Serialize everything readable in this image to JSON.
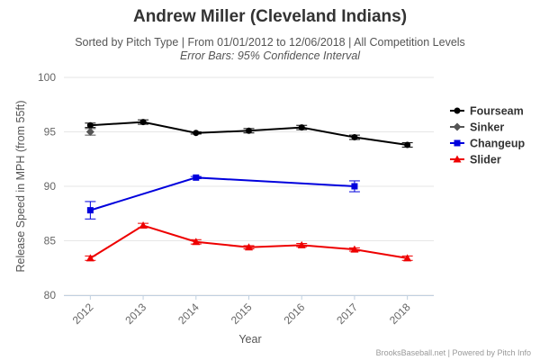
{
  "chart_data": {
    "type": "line",
    "title": "Andrew Miller (Cleveland Indians)",
    "subtitle": "Sorted by Pitch Type | From 01/01/2012 to 12/06/2018 | All Competition Levels",
    "subtitle2": "Error Bars: 95% Confidence Interval",
    "xlabel": "Year",
    "ylabel": "Release Speed in MPH (from 55ft)",
    "categories": [
      "2012",
      "2013",
      "2014",
      "2015",
      "2016",
      "2017",
      "2018"
    ],
    "ylim": [
      80,
      100
    ],
    "yticks": [
      "80",
      "85",
      "90",
      "95",
      "100"
    ],
    "grid": true,
    "legend_position": "right",
    "series": [
      {
        "name": "Fourseam",
        "color": "#000000",
        "marker": "circle",
        "values": [
          95.6,
          95.9,
          94.9,
          95.1,
          95.4,
          94.5,
          93.8
        ],
        "error": [
          0.2,
          0.2,
          0.1,
          0.2,
          0.2,
          0.2,
          0.2
        ]
      },
      {
        "name": "Sinker",
        "color": "#555555",
        "marker": "diamond",
        "values": [
          95.0,
          null,
          null,
          null,
          null,
          null,
          null
        ],
        "error": [
          0.3,
          null,
          null,
          null,
          null,
          null,
          null
        ]
      },
      {
        "name": "Changeup",
        "color": "#0000dd",
        "marker": "square",
        "values": [
          87.8,
          null,
          90.8,
          null,
          null,
          90.0,
          null
        ],
        "error": [
          0.8,
          null,
          0.1,
          null,
          null,
          0.5,
          null
        ]
      },
      {
        "name": "Slider",
        "color": "#ee0000",
        "marker": "triangle",
        "values": [
          83.4,
          86.4,
          84.9,
          84.4,
          84.6,
          84.2,
          83.4
        ],
        "error": [
          0.2,
          0.2,
          0.2,
          0.15,
          0.15,
          0.15,
          0.2
        ]
      }
    ]
  },
  "credits": "BrooksBaseball.net | Powered by Pitch Info"
}
